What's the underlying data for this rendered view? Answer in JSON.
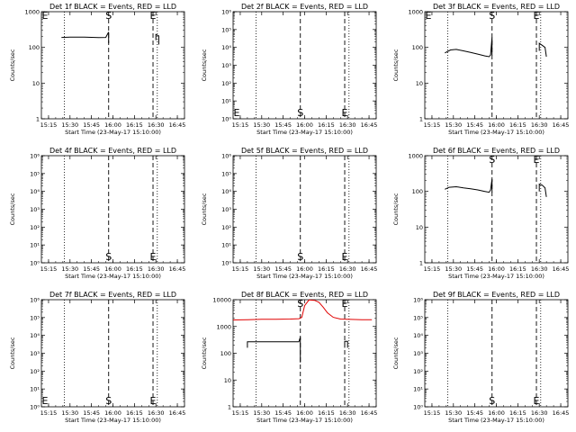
{
  "x_tick_labels": [
    "15:15",
    "15:30",
    "15:45",
    "16:00",
    "16:15",
    "16:30",
    "16:45"
  ],
  "xlabel": "Start Time (23-May-17 15:10:00)",
  "ylabel": "Counts/sec",
  "colors": {
    "events": "#000000",
    "lld": "#e00000"
  },
  "x_range": [
    "15:10",
    "16:50"
  ],
  "vlines": {
    "dotted": [
      "15:26",
      "16:31"
    ],
    "dashed": [
      "15:57",
      "16:28"
    ]
  },
  "chart_data": [
    {
      "type": "line",
      "title": "Det 1f BLACK = Events, RED = LLD",
      "ylim": [
        1,
        1000
      ],
      "y_tick_labels": [
        "1",
        "10",
        "100",
        "1000"
      ],
      "markers": [
        {
          "text": "E",
          "x": "15:11",
          "y": 1000
        },
        {
          "text": "S",
          "x": "15:57",
          "y": 1000
        },
        {
          "text": "E",
          "x": "16:28",
          "y": 1000
        }
      ],
      "series": [
        {
          "color": "black",
          "segments": [
            {
              "x": [
                "15:24",
                "15:30",
                "15:40",
                "15:50",
                "15:55",
                "15:57",
                "15:57"
              ],
              "y": [
                190,
                195,
                195,
                188,
                190,
                270,
                130
              ]
            },
            {
              "x": [
                "16:30",
                "16:30",
                "16:31",
                "16:32",
                "16:32"
              ],
              "y": [
                160,
                230,
                220,
                210,
                120
              ]
            }
          ]
        }
      ]
    },
    {
      "type": "line",
      "title": "Det 2f BLACK = Events, RED = LLD",
      "ylim": [
        1,
        1000000
      ],
      "y_tick_labels": [
        "10⁰",
        "10¹",
        "10²",
        "10³",
        "10⁴",
        "10⁵",
        "10⁶"
      ],
      "markers": [
        {
          "text": "E",
          "x": "15:11",
          "y": 1.4
        },
        {
          "text": "S",
          "x": "15:57",
          "y": 1.4
        },
        {
          "text": "E",
          "x": "16:28",
          "y": 1.4
        }
      ],
      "series": []
    },
    {
      "type": "line",
      "title": "Det 3f BLACK = Events, RED = LLD",
      "ylim": [
        1,
        1000
      ],
      "y_tick_labels": [
        "1",
        "10",
        "100",
        "1000"
      ],
      "markers": [
        {
          "text": "E",
          "x": "15:11",
          "y": 1000
        },
        {
          "text": "S",
          "x": "15:57",
          "y": 1000
        },
        {
          "text": "E",
          "x": "16:28",
          "y": 1000
        }
      ],
      "series": [
        {
          "color": "black",
          "segments": [
            {
              "x": [
                "15:24",
                "15:28",
                "15:32",
                "15:37",
                "15:42",
                "15:47",
                "15:52",
                "15:55",
                "15:56",
                "15:57",
                "15:57"
              ],
              "y": [
                70,
                85,
                88,
                80,
                72,
                65,
                58,
                55,
                62,
                190,
                60
              ]
            },
            {
              "x": [
                "16:30",
                "16:30",
                "16:32",
                "16:34",
                "16:35"
              ],
              "y": [
                80,
                130,
                115,
                100,
                55
              ]
            }
          ]
        }
      ]
    },
    {
      "type": "line",
      "title": "Det 4f BLACK = Events, RED = LLD",
      "ylim": [
        1,
        1000000
      ],
      "y_tick_labels": [
        "10⁰",
        "10¹",
        "10²",
        "10³",
        "10⁴",
        "10⁵",
        "10⁶"
      ],
      "markers": [
        {
          "text": "S",
          "x": "15:57",
          "y": 1.4
        },
        {
          "text": "E",
          "x": "16:28",
          "y": 1.4
        }
      ],
      "series": []
    },
    {
      "type": "line",
      "title": "Det 5f BLACK = Events, RED = LLD",
      "ylim": [
        1,
        1000000
      ],
      "y_tick_labels": [
        "10⁰",
        "10¹",
        "10²",
        "10³",
        "10⁴",
        "10⁵",
        "10⁶"
      ],
      "markers": [
        {
          "text": "S",
          "x": "15:57",
          "y": 1.4
        },
        {
          "text": "E",
          "x": "16:28",
          "y": 1.4
        }
      ],
      "series": []
    },
    {
      "type": "line",
      "title": "Det 6f BLACK = Events, RED = LLD",
      "ylim": [
        1,
        1000
      ],
      "y_tick_labels": [
        "1",
        "10",
        "100",
        "1000"
      ],
      "markers": [
        {
          "text": "S",
          "x": "15:57",
          "y": 1000
        },
        {
          "text": "E",
          "x": "16:28",
          "y": 1000
        }
      ],
      "series": [
        {
          "color": "black",
          "segments": [
            {
              "x": [
                "15:24",
                "15:27",
                "15:32",
                "15:37",
                "15:42",
                "15:47",
                "15:52",
                "15:55",
                "15:56",
                "15:57",
                "15:57"
              ],
              "y": [
                115,
                130,
                135,
                125,
                118,
                110,
                100,
                95,
                110,
                220,
                95
              ]
            },
            {
              "x": [
                "16:30",
                "16:30",
                "16:32",
                "16:34",
                "16:35"
              ],
              "y": [
                100,
                160,
                150,
                125,
                70
              ]
            }
          ]
        }
      ]
    },
    {
      "type": "line",
      "title": "Det 7f BLACK = Events, RED = LLD",
      "ylim": [
        1,
        1000000
      ],
      "y_tick_labels": [
        "10⁰",
        "10¹",
        "10²",
        "10³",
        "10⁴",
        "10⁵",
        "10⁶"
      ],
      "markers": [
        {
          "text": "E",
          "x": "15:11",
          "y": 1.4
        },
        {
          "text": "S",
          "x": "15:57",
          "y": 1.4
        },
        {
          "text": "E",
          "x": "16:28",
          "y": 1.4
        }
      ],
      "series": []
    },
    {
      "type": "line",
      "title": "Det 8f BLACK = Events, RED = LLD",
      "ylim": [
        1,
        10000
      ],
      "y_tick_labels": [
        "1",
        "10",
        "100",
        "1000",
        "10000"
      ],
      "markers": [
        {
          "text": "S",
          "x": "15:57",
          "y": 10000
        },
        {
          "text": "E",
          "x": "16:28",
          "y": 10000
        }
      ],
      "series": [
        {
          "color": "red",
          "segments": [
            {
              "x": [
                "15:10",
                "15:20",
                "15:30",
                "15:40",
                "15:50",
                "15:56",
                "15:58",
                "16:00",
                "16:03",
                "16:07",
                "16:10",
                "16:13",
                "16:16",
                "16:20",
                "16:25",
                "16:30",
                "16:40",
                "16:47"
              ],
              "y": [
                1750,
                1800,
                1850,
                1850,
                1900,
                1950,
                2200,
                6000,
                9800,
                9500,
                8000,
                5200,
                3200,
                2200,
                1900,
                1850,
                1800,
                1780
              ]
            }
          ]
        },
        {
          "color": "black",
          "segments": [
            {
              "x": [
                "15:20",
                "15:20",
                "15:30",
                "15:40",
                "15:50",
                "15:56",
                "15:57",
                "15:57"
              ],
              "y": [
                160,
                270,
                270,
                270,
                270,
                270,
                400,
                45
              ]
            },
            {
              "x": [
                "16:28",
                "16:28",
                "16:30",
                "16:30"
              ],
              "y": [
                160,
                280,
                280,
                160
              ]
            }
          ]
        }
      ]
    },
    {
      "type": "line",
      "title": "Det 9f BLACK = Events, RED = LLD",
      "ylim": [
        1,
        1000000
      ],
      "y_tick_labels": [
        "10⁰",
        "10¹",
        "10²",
        "10³",
        "10⁴",
        "10⁵",
        "10⁶"
      ],
      "markers": [
        {
          "text": "S",
          "x": "15:57",
          "y": 1.4
        },
        {
          "text": "E",
          "x": "16:28",
          "y": 1.4
        }
      ],
      "series": []
    }
  ]
}
